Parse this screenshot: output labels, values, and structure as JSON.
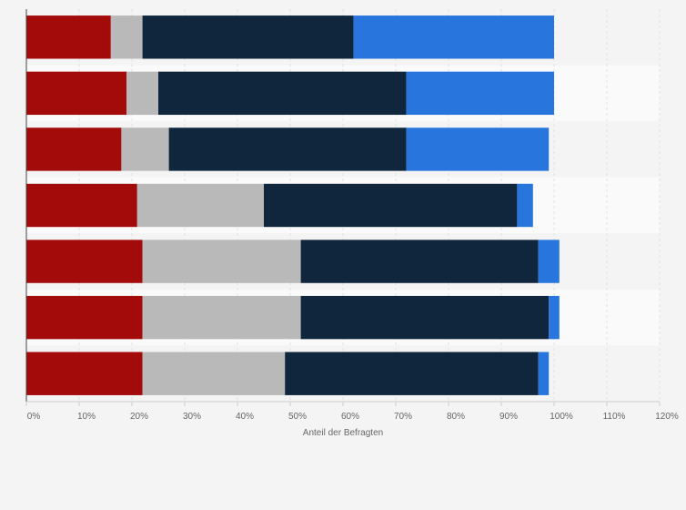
{
  "chart_data": {
    "type": "bar",
    "orientation": "horizontal",
    "stacked": true,
    "categories": [
      "",
      "",
      "",
      "",
      "",
      "",
      ""
    ],
    "series": [
      {
        "color": "#a30a0a",
        "values": [
          16,
          19,
          18,
          21,
          22,
          22,
          22
        ]
      },
      {
        "color": "#b9b9b9",
        "values": [
          6,
          6,
          9,
          24,
          30,
          30,
          27
        ]
      },
      {
        "color": "#10263d",
        "values": [
          40,
          47,
          45,
          48,
          45,
          47,
          48
        ]
      },
      {
        "color": "#2876dd",
        "values": [
          38,
          28,
          27,
          3,
          4,
          2,
          2
        ]
      }
    ],
    "xlabel": "Anteil der Befragten",
    "ylabel": "",
    "xlim": [
      0,
      120
    ],
    "xticks": [
      {
        "value": 0,
        "label": "0%"
      },
      {
        "value": 10,
        "label": "10%"
      },
      {
        "value": 20,
        "label": "20%"
      },
      {
        "value": 30,
        "label": "30%"
      },
      {
        "value": 40,
        "label": "40%"
      },
      {
        "value": 50,
        "label": "50%"
      },
      {
        "value": 60,
        "label": "60%"
      },
      {
        "value": 70,
        "label": "70%"
      },
      {
        "value": 80,
        "label": "80%"
      },
      {
        "value": 90,
        "label": "90%"
      },
      {
        "value": 100,
        "label": "100%"
      },
      {
        "value": 110,
        "label": "110%"
      },
      {
        "value": 120,
        "label": "120%"
      }
    ],
    "grid": true,
    "legend": "none"
  }
}
